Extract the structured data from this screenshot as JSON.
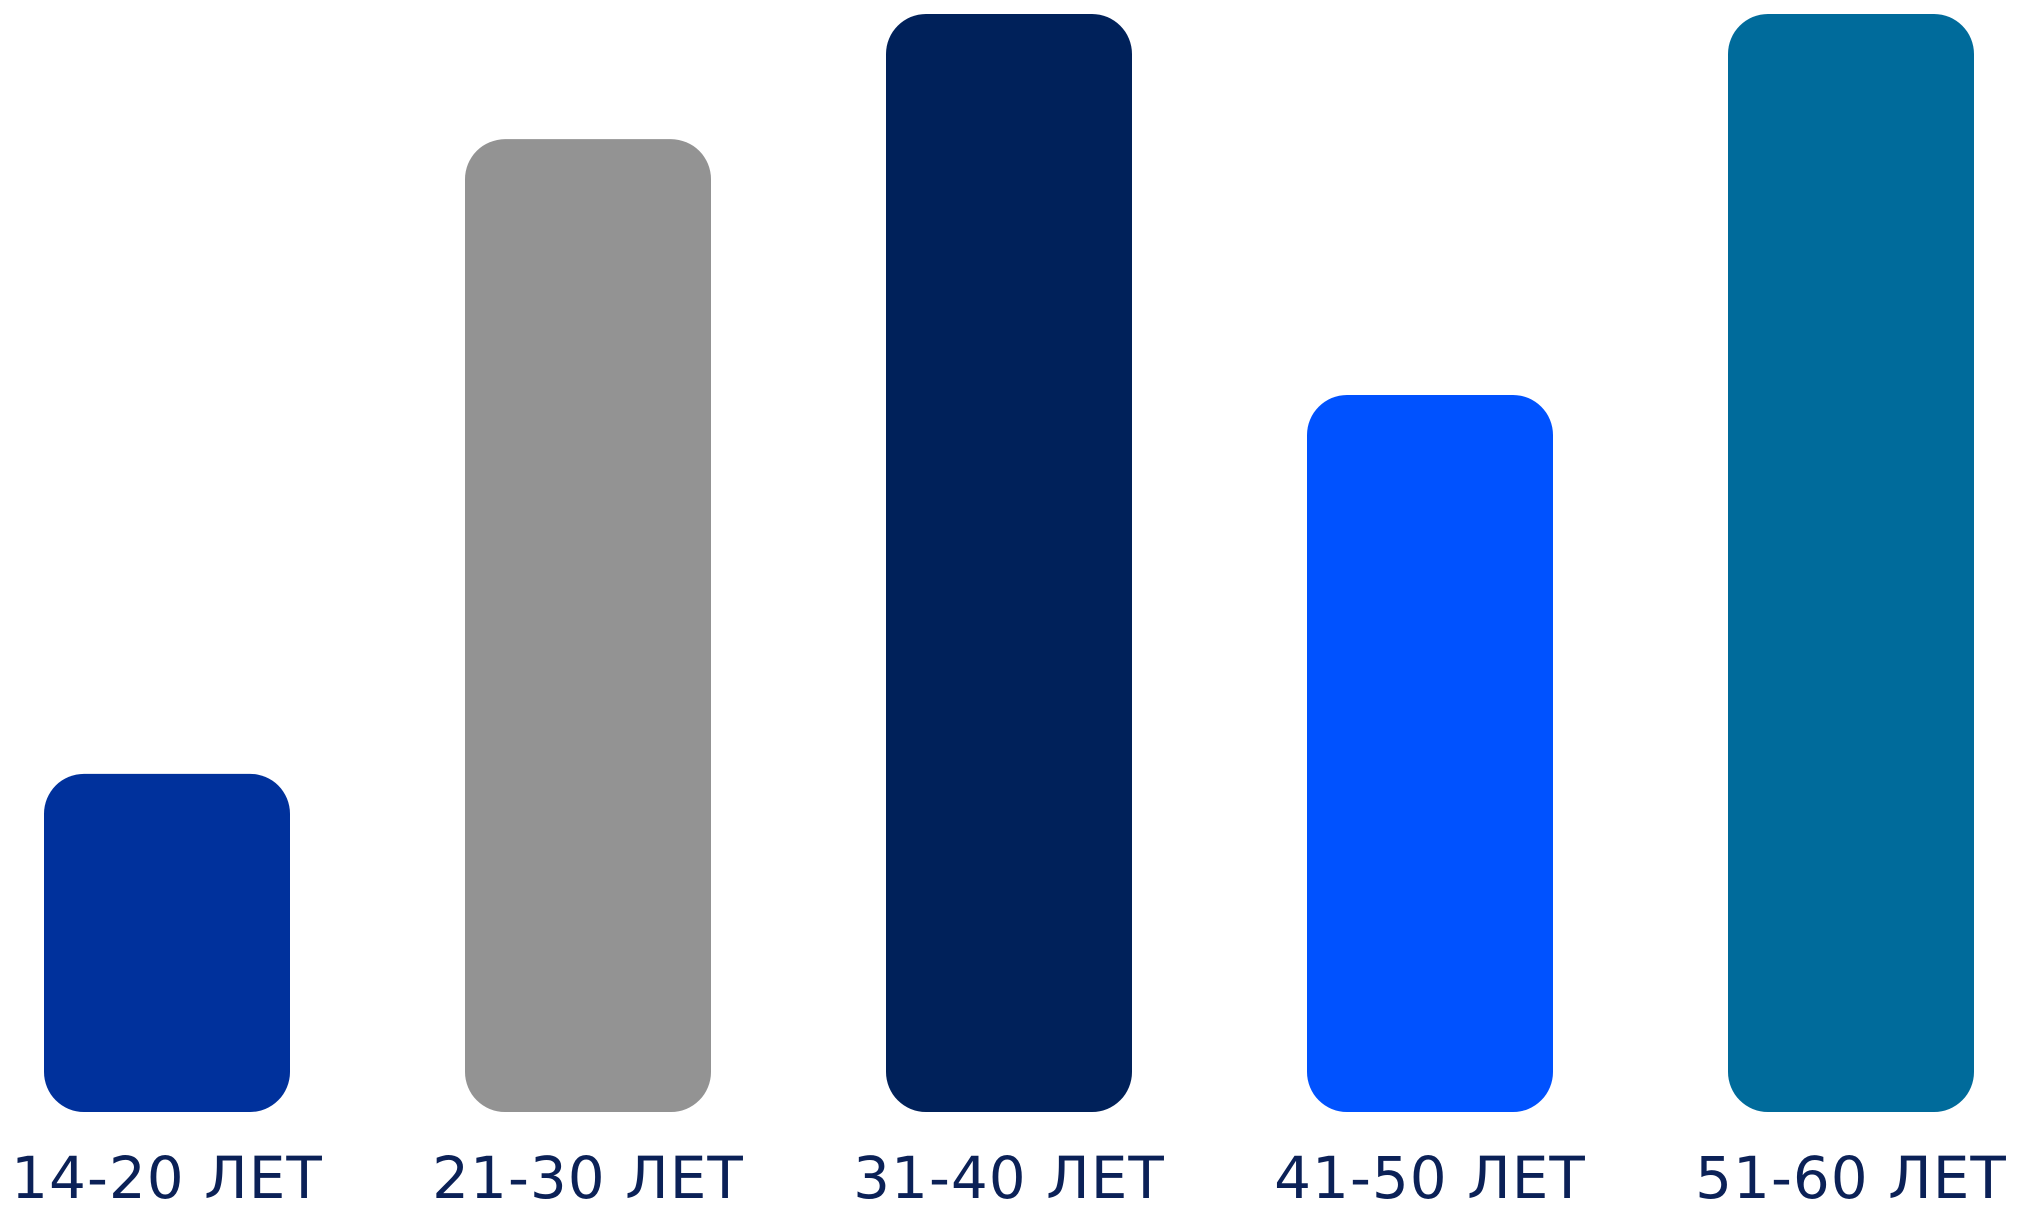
{
  "chart_data": {
    "type": "bar",
    "categories": [
      "14-20 ЛЕТ",
      "21-30 ЛЕТ",
      "31-40 ЛЕТ",
      "41-50 ЛЕТ",
      "51-60 ЛЕТ"
    ],
    "values": [
      30.8,
      88.6,
      100,
      65.3,
      100
    ],
    "colors": [
      "#00319c",
      "#939393",
      "#00215a",
      "#0052ff",
      "#006b9b"
    ],
    "ylim": [
      0,
      100
    ],
    "grid": false,
    "legend": "none",
    "title": "",
    "xlabel": "",
    "ylabel": ""
  }
}
